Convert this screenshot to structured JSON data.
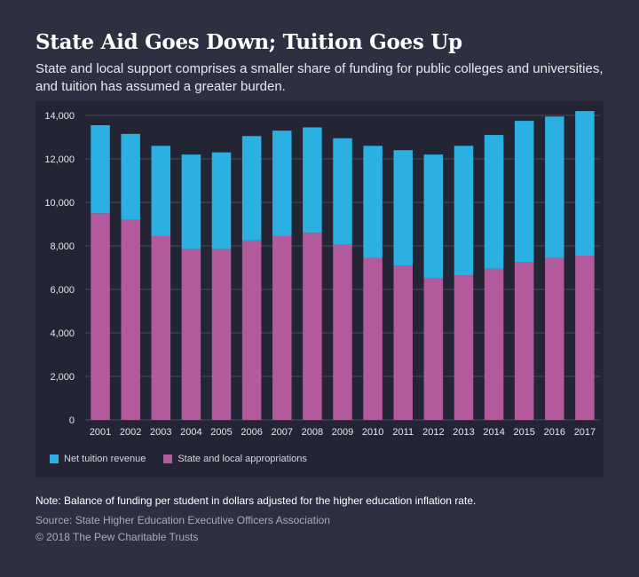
{
  "header": {
    "title": "State Aid Goes Down; Tuition Goes Up",
    "subtitle": "State and local support comprises a smaller share of funding for public colleges and universities, and tuition has assumed a greater burden."
  },
  "colors": {
    "background": "#2e3042",
    "panel": "#232535",
    "tuition": "#2bb0e2",
    "appropriations": "#b35a9c",
    "gridline": "#4a4c5e"
  },
  "chart_data": {
    "type": "bar",
    "stacked": true,
    "categories": [
      "2001",
      "2002",
      "2003",
      "2004",
      "2005",
      "2006",
      "2007",
      "2008",
      "2009",
      "2010",
      "2011",
      "2012",
      "2013",
      "2014",
      "2015",
      "2016",
      "2017"
    ],
    "series": [
      {
        "name": "State and local appropriations",
        "color": "#b35a9c",
        "values": [
          9500,
          9200,
          8450,
          7850,
          7850,
          8250,
          8450,
          8600,
          8050,
          7450,
          7100,
          6500,
          6650,
          6950,
          7250,
          7450,
          7550
        ]
      },
      {
        "name": "Net tuition revenue",
        "color": "#2bb0e2",
        "values": [
          4050,
          3950,
          4150,
          4350,
          4450,
          4800,
          4850,
          4850,
          4900,
          5150,
          5300,
          5700,
          5950,
          6150,
          6500,
          6500,
          6650
        ]
      }
    ],
    "ylim": [
      0,
      14000
    ],
    "yticks": [
      "0",
      "2,000",
      "4,000",
      "6,000",
      "8,000",
      "10,000",
      "12,000",
      "14,000"
    ],
    "ytick_values": [
      0,
      2000,
      4000,
      6000,
      8000,
      10000,
      12000,
      14000
    ],
    "grid": true,
    "legend_position": "bottom-left"
  },
  "legend": {
    "tuition_label": "Net tuition revenue",
    "appropriations_label": "State and local appropriations"
  },
  "footer": {
    "note": "Note: Balance of funding per student in dollars adjusted for the higher education inflation rate.",
    "source": "Source: State Higher Education Executive Officers Association",
    "copyright": "© 2018 The Pew Charitable Trusts"
  }
}
